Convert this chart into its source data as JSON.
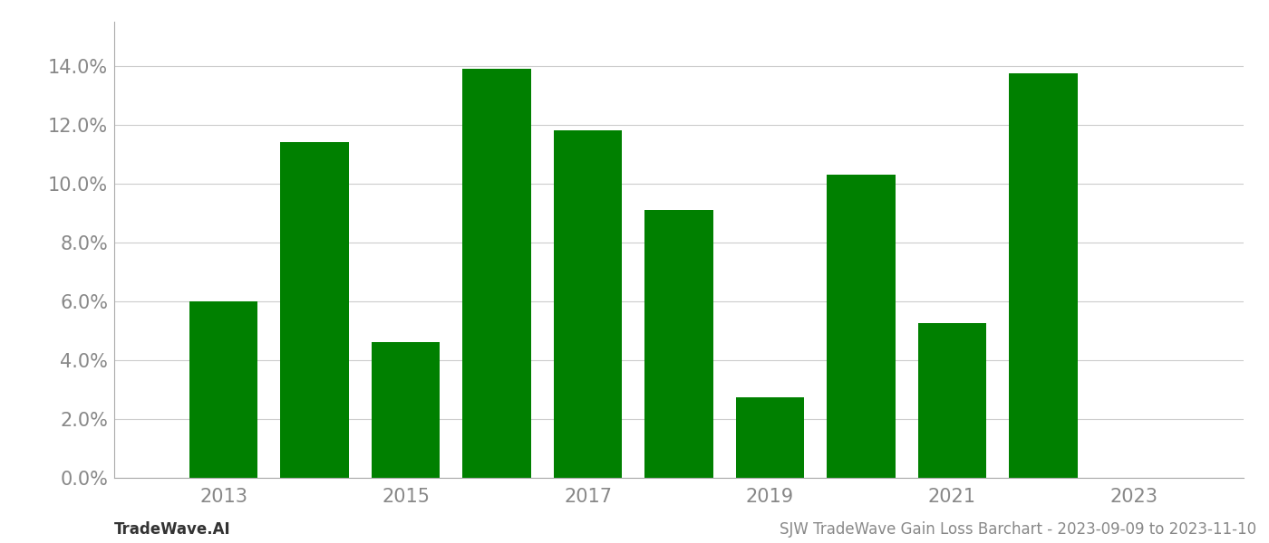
{
  "years": [
    2013,
    2014,
    2015,
    2016,
    2017,
    2018,
    2019,
    2020,
    2021,
    2022
  ],
  "values": [
    0.06,
    0.114,
    0.046,
    0.139,
    0.118,
    0.091,
    0.0275,
    0.103,
    0.0525,
    0.1375
  ],
  "bar_color": "#008000",
  "ylim": [
    0,
    0.155
  ],
  "yticks": [
    0.0,
    0.02,
    0.04,
    0.06,
    0.08,
    0.1,
    0.12,
    0.14
  ],
  "xtick_labels": [
    "2013",
    "2015",
    "2017",
    "2019",
    "2021",
    "2023"
  ],
  "xtick_positions": [
    2013,
    2015,
    2017,
    2019,
    2021,
    2023
  ],
  "footer_left": "TradeWave.AI",
  "footer_right": "SJW TradeWave Gain Loss Barchart - 2023-09-09 to 2023-11-10",
  "background_color": "#ffffff",
  "grid_color": "#cccccc",
  "tick_label_color": "#888888",
  "bar_width": 0.75,
  "xlim_left": 2011.8,
  "xlim_right": 2024.2
}
